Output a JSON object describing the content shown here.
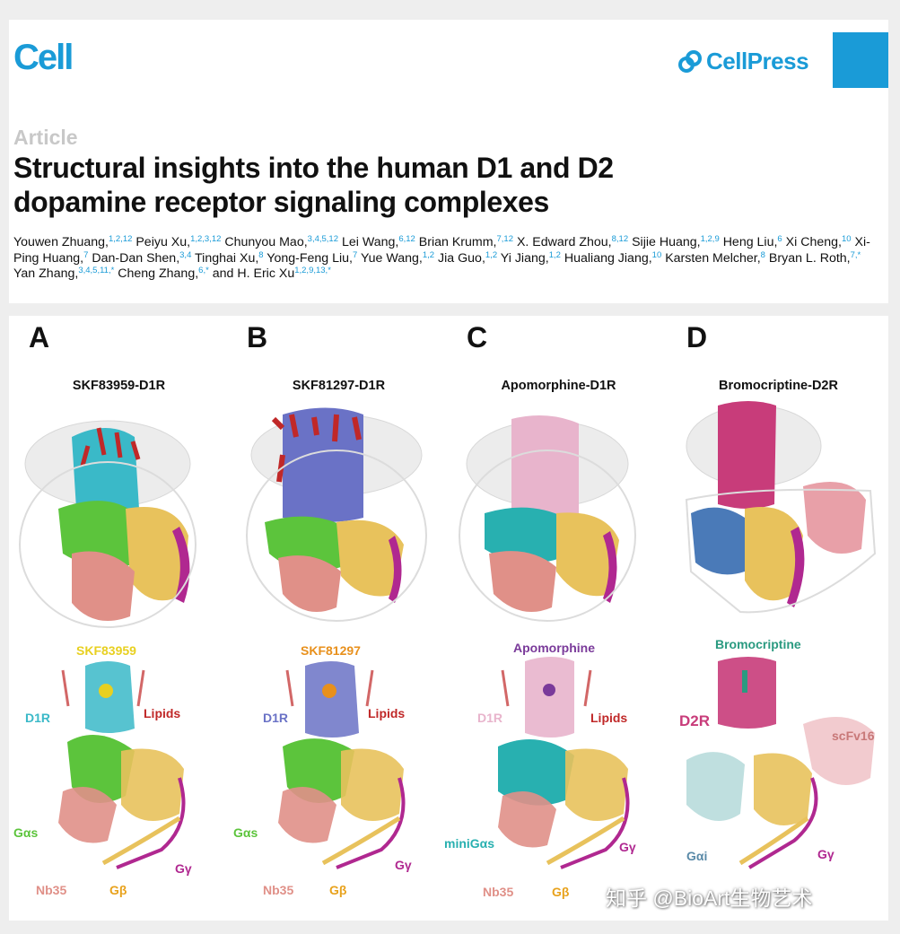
{
  "header": {
    "journal": "Cell",
    "publisher": "CellPress",
    "article_type": "Article",
    "title": "Structural insights into the human D1 and D2 dopamine receptor signaling complexes",
    "authors": [
      {
        "name": "Youwen Zhuang,",
        "sup": "1,2,12"
      },
      {
        "name": "Peiyu Xu,",
        "sup": "1,2,3,12"
      },
      {
        "name": "Chunyou Mao,",
        "sup": "3,4,5,12"
      },
      {
        "name": "Lei Wang,",
        "sup": "6,12"
      },
      {
        "name": "Brian Krumm,",
        "sup": "7,12"
      },
      {
        "name": "X. Edward Zhou,",
        "sup": "8,12"
      },
      {
        "name": "Sijie Huang,",
        "sup": "1,2,9"
      },
      {
        "name": "Heng Liu,",
        "sup": "6"
      },
      {
        "name": "Xi Cheng,",
        "sup": "10"
      },
      {
        "name": "Xi-Ping Huang,",
        "sup": "7"
      },
      {
        "name": "Dan-Dan Shen,",
        "sup": "3,4"
      },
      {
        "name": "Tinghai Xu,",
        "sup": "8"
      },
      {
        "name": "Yong-Feng Liu,",
        "sup": "7"
      },
      {
        "name": "Yue Wang,",
        "sup": "1,2"
      },
      {
        "name": "Jia Guo,",
        "sup": "1,2"
      },
      {
        "name": "Yi Jiang,",
        "sup": "1,2"
      },
      {
        "name": "Hualiang Jiang,",
        "sup": "10"
      },
      {
        "name": "Karsten Melcher,",
        "sup": "8"
      },
      {
        "name": "Bryan L. Roth,",
        "sup": "7,*"
      },
      {
        "name": "Yan Zhang,",
        "sup": "3,4,5,11,*"
      },
      {
        "name": "Cheng Zhang,",
        "sup": "6,*"
      },
      {
        "name": "and H. Eric Xu",
        "sup": "1,2,9,13,*"
      }
    ]
  },
  "figure": {
    "panels": [
      {
        "letter": "A",
        "title": "SKF83959-D1R",
        "ligand": "SKF83959",
        "receptor": "D1R",
        "lipids": "Lipids",
        "galpha": "Gαs",
        "nb": "Nb35",
        "gbeta": "Gβ",
        "ggamma": "Gγ"
      },
      {
        "letter": "B",
        "title": "SKF81297-D1R",
        "ligand": "SKF81297",
        "receptor": "D1R",
        "lipids": "Lipids",
        "galpha": "Gαs",
        "nb": "Nb35",
        "gbeta": "Gβ",
        "ggamma": "Gγ"
      },
      {
        "letter": "C",
        "title": "Apomorphine-D1R",
        "ligand": "Apomorphine",
        "receptor": "D1R",
        "lipids": "Lipids",
        "galpha": "miniGαs",
        "nb": "Nb35",
        "gbeta": "Gβ",
        "ggamma": "Gγ"
      },
      {
        "letter": "D",
        "title": "Bromocriptine-D2R",
        "ligand": "Bromocriptine",
        "receptor": "D2R",
        "scfv": "scFv16",
        "galpha": "Gαi",
        "ggamma": "Gγ"
      }
    ],
    "colors": {
      "d1r_a": "#3ab9c8",
      "d1r_b": "#6a72c6",
      "d1r_c": "#e8b4cc",
      "d2r": "#c83c7a",
      "gas": "#5cc43c",
      "minigas": "#28b0b0",
      "gai": "#b8dcdc",
      "gbeta": "#e8c25c",
      "ggamma": "#b02890",
      "nb35": "#e09088",
      "scfv": "#e8a0a8",
      "lipids": "#c02828",
      "ligand_a": "#e8d020",
      "ligand_b": "#e8901c",
      "ligand_c": "#7a3a9a",
      "ligand_d": "#2a9a80"
    }
  },
  "watermark": "知乎 @BioArt生物艺术"
}
